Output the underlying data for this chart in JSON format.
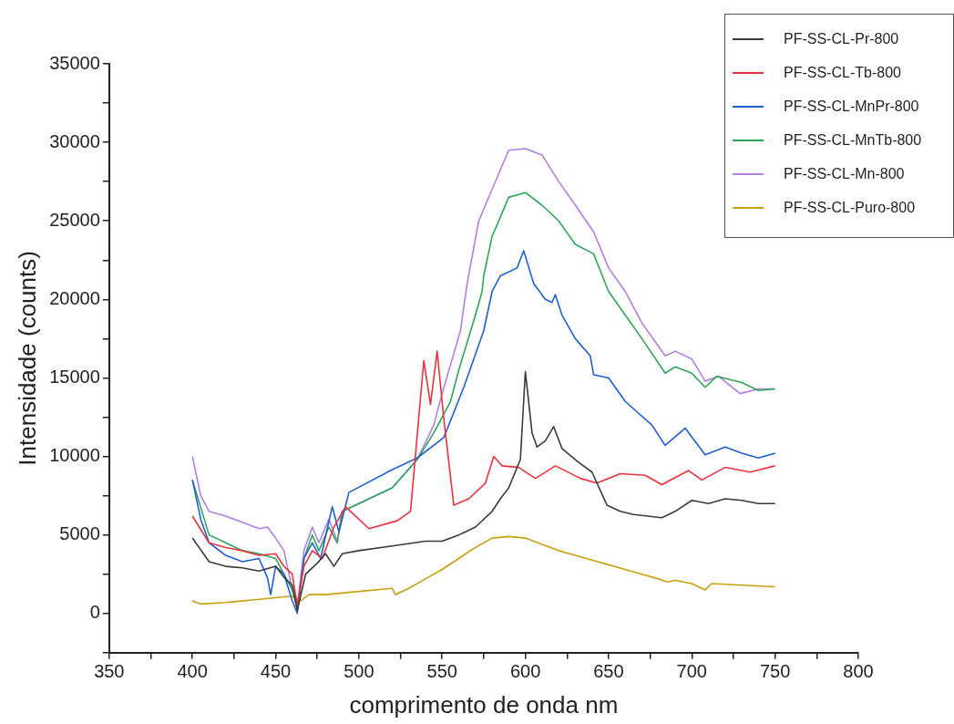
{
  "chart_data": {
    "type": "line",
    "xlabel": "comprimento de onda nm",
    "ylabel": "Intensidade (counts)",
    "xlim": [
      350,
      800
    ],
    "ylim": [
      -2500,
      35000
    ],
    "xticks": [
      350,
      {
        "value": 375,
        "label": null
      },
      400,
      {
        "value": 425,
        "label": null
      },
      450,
      {
        "value": 475,
        "label": null
      },
      500,
      {
        "value": 525,
        "label": null
      },
      550,
      {
        "value": 575,
        "label": null
      },
      600,
      {
        "value": 625,
        "label": null
      },
      650,
      {
        "value": 675,
        "label": null
      },
      700,
      {
        "value": 725,
        "label": null
      },
      750,
      {
        "value": 775,
        "label": null
      },
      800
    ],
    "yticks": [
      {
        "value": -2500,
        "label": null
      },
      0,
      {
        "value": 2500,
        "label": null
      },
      5000,
      {
        "value": 7500,
        "label": null
      },
      10000,
      {
        "value": 12500,
        "label": null
      },
      15000,
      {
        "value": 17500,
        "label": null
      },
      20000,
      {
        "value": 22500,
        "label": null
      },
      25000,
      {
        "value": 27500,
        "label": null
      },
      30000,
      {
        "value": 32500,
        "label": null
      },
      35000
    ],
    "grid": false,
    "legend": "top right",
    "marker": "none",
    "line_style": "solid",
    "series": [
      {
        "name": "PF-SS-CL-Pr-800",
        "color": "#3a3a3a",
        "x": [
          400,
          410,
          420,
          430,
          440,
          450,
          455,
          460,
          463,
          468,
          475,
          480,
          485,
          490,
          500,
          520,
          540,
          550,
          560,
          570,
          580,
          585,
          590,
          597,
          600,
          604,
          607,
          612,
          617,
          622,
          631,
          640,
          649,
          657,
          665,
          682,
          690,
          700,
          710,
          720,
          730,
          740,
          750
        ],
        "values": [
          4800,
          3300,
          3000,
          2900,
          2700,
          3000,
          2300,
          1800,
          200,
          2500,
          3200,
          3800,
          3000,
          3800,
          4000,
          4300,
          4600,
          4600,
          5000,
          5500,
          6500,
          7300,
          8000,
          9800,
          15400,
          11500,
          10600,
          11000,
          11900,
          10500,
          9700,
          9000,
          6900,
          6500,
          6300,
          6100,
          6500,
          7200,
          7000,
          7300,
          7200,
          7000,
          7000
        ]
      },
      {
        "name": "PF-SS-CL-Tb-800",
        "color": "#e8323c",
        "x": [
          400,
          410,
          420,
          430,
          440,
          450,
          455,
          460,
          463,
          467,
          472,
          478,
          485,
          492,
          506,
          523,
          531,
          539,
          543,
          547,
          551,
          557,
          566,
          576,
          581,
          586,
          596,
          606,
          618,
          633,
          643,
          657,
          672,
          682,
          698,
          706,
          720,
          735,
          750
        ],
        "values": [
          6200,
          4500,
          4200,
          4000,
          3700,
          3800,
          3000,
          2500,
          500,
          3000,
          4000,
          3500,
          5500,
          6800,
          5400,
          5900,
          6500,
          16100,
          13300,
          16700,
          12400,
          6900,
          7300,
          8300,
          10000,
          9400,
          9300,
          8600,
          9400,
          8600,
          8300,
          8900,
          8800,
          8200,
          9100,
          8500,
          9300,
          9000,
          9400
        ]
      },
      {
        "name": "PF-SS-CL-MnPr-800",
        "color": "#1f5fd0",
        "x": [
          400,
          405,
          410,
          420,
          430,
          440,
          445,
          447,
          450,
          455,
          460,
          463,
          467,
          472,
          477,
          484,
          488,
          494,
          519,
          535,
          551,
          563,
          575,
          580,
          585,
          595,
          599,
          605,
          612,
          616,
          618,
          622,
          630,
          639,
          641,
          650,
          660,
          676,
          684,
          696,
          708,
          720,
          730,
          740,
          750
        ],
        "values": [
          8500,
          6000,
          4500,
          3700,
          3300,
          3500,
          2300,
          1200,
          3000,
          2500,
          800,
          0,
          3500,
          4500,
          3500,
          6800,
          5200,
          7700,
          9100,
          9900,
          11200,
          14400,
          18000,
          20500,
          21500,
          22000,
          23100,
          21000,
          20000,
          19800,
          20300,
          19000,
          17500,
          16400,
          15200,
          15000,
          13500,
          12000,
          10700,
          11800,
          10100,
          10600,
          10200,
          9900,
          10200
        ]
      },
      {
        "name": "PF-SS-CL-MnTb-800",
        "color": "#2ea65a",
        "x": [
          400,
          410,
          420,
          430,
          440,
          450,
          460,
          463,
          467,
          472,
          476,
          482,
          487,
          490,
          500,
          520,
          535,
          545,
          555,
          560,
          570,
          574,
          575,
          580,
          590,
          600,
          610,
          620,
          630,
          641,
          650,
          660,
          670,
          684,
          690,
          700,
          708,
          715,
          730,
          740,
          750
        ],
        "values": [
          8500,
          5000,
          4500,
          4000,
          3800,
          3500,
          1500,
          300,
          3500,
          5000,
          4000,
          5500,
          4500,
          6500,
          7000,
          8000,
          9800,
          11500,
          13500,
          15500,
          19000,
          20500,
          21500,
          24000,
          26500,
          26800,
          26000,
          25000,
          23500,
          22900,
          20500,
          19000,
          17500,
          15300,
          15700,
          15300,
          14400,
          15100,
          14700,
          14200,
          14300
        ]
      },
      {
        "name": "PF-SS-CL-Mn-800",
        "color": "#b07fe0",
        "x": [
          400,
          405,
          410,
          420,
          430,
          440,
          445,
          450,
          455,
          460,
          463,
          467,
          472,
          476,
          482,
          487,
          490,
          500,
          520,
          535,
          545,
          550,
          561,
          565,
          572,
          580,
          590,
          600,
          610,
          620,
          630,
          641,
          650,
          660,
          670,
          684,
          690,
          700,
          708,
          716,
          729,
          740,
          750
        ],
        "values": [
          10000,
          7500,
          6500,
          6200,
          5800,
          5400,
          5500,
          4800,
          4000,
          1500,
          500,
          4000,
          5500,
          4500,
          6000,
          4600,
          6500,
          7000,
          8000,
          9800,
          12000,
          14000,
          18000,
          21000,
          25000,
          27000,
          29500,
          29600,
          29200,
          27500,
          26000,
          24300,
          22000,
          20500,
          18500,
          16400,
          16700,
          16200,
          14800,
          15100,
          14000,
          14300,
          14300
        ]
      },
      {
        "name": "PF-SS-CL-Puro-800",
        "color": "#c9a010",
        "x": [
          400,
          405,
          420,
          440,
          450,
          460,
          465,
          470,
          480,
          490,
          500,
          520,
          522,
          530,
          540,
          550,
          560,
          570,
          580,
          590,
          600,
          610,
          620,
          630,
          640,
          650,
          660,
          670,
          680,
          685,
          690,
          700,
          708,
          712,
          730,
          750
        ],
        "values": [
          800,
          600,
          700,
          900,
          1000,
          1100,
          800,
          1200,
          1200,
          1300,
          1400,
          1600,
          1200,
          1600,
          2200,
          2800,
          3500,
          4200,
          4800,
          4900,
          4800,
          4400,
          4000,
          3700,
          3400,
          3100,
          2800,
          2500,
          2200,
          2000,
          2100,
          1900,
          1500,
          1900,
          1800,
          1700
        ]
      }
    ]
  }
}
